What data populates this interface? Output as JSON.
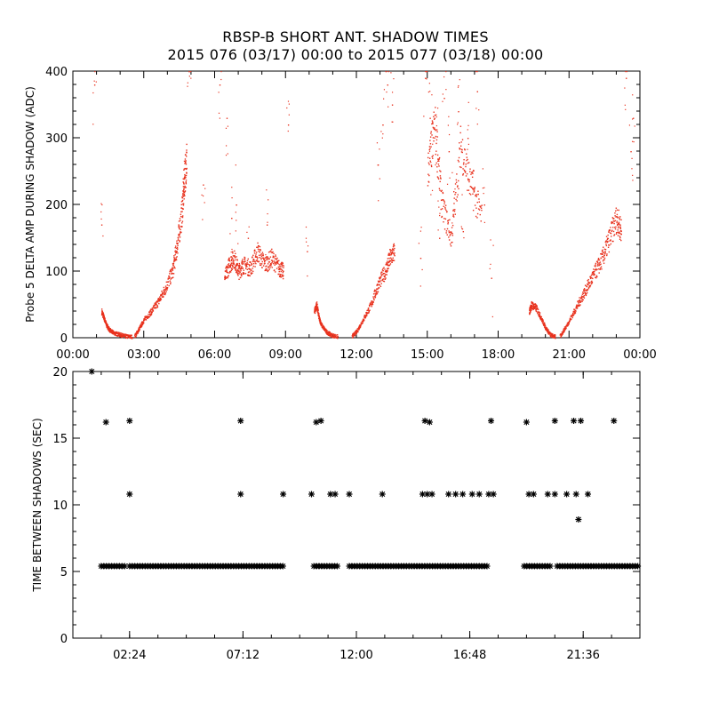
{
  "title": "RBSP-B SHORT ANT. SHADOW TIMES",
  "subtitle": "2015 076 (03/17) 00:00 to 2015 077 (03/18) 00:00",
  "colors": {
    "top_series": "#e8321e",
    "bottom_series": "#000000",
    "axes": "#000000"
  },
  "chart_data": [
    {
      "type": "scatter",
      "ylabel": "Probe 5 DELTA AMP DURING SHADOW (ADC)",
      "xlabel": "",
      "xlim": [
        0,
        24
      ],
      "ylim": [
        0,
        400
      ],
      "x_tick_labels": [
        "00:00",
        "03:00",
        "06:00",
        "09:00",
        "12:00",
        "15:00",
        "18:00",
        "21:00",
        "00:00"
      ],
      "x_tick_values": [
        0,
        3,
        6,
        9,
        12,
        15,
        18,
        21,
        24
      ],
      "y_tick_labels": [
        "0",
        "100",
        "200",
        "300",
        "400"
      ],
      "y_tick_values": [
        0,
        100,
        200,
        300,
        400
      ],
      "grid": false,
      "series": [
        {
          "color": "#e8321e",
          "marker": "dot",
          "segments": [
            {
              "x": [
                1.2,
                1.3,
                1.4,
                1.5,
                1.6,
                1.8,
                2.0,
                2.2,
                2.5
              ],
              "y": [
                40,
                30,
                20,
                14,
                10,
                7,
                5,
                3,
                2
              ]
            },
            {
              "x": [
                2.6,
                2.8,
                3.0,
                3.3,
                3.6,
                3.9,
                4.2,
                4.4,
                4.6,
                4.7,
                4.8
              ],
              "y": [
                3,
                15,
                28,
                40,
                55,
                75,
                100,
                140,
                190,
                240,
                270
              ]
            },
            {
              "x": [
                6.4,
                6.6,
                6.8,
                7.0,
                7.2,
                7.5,
                7.8,
                8.1,
                8.4,
                8.7,
                8.9
              ],
              "y": [
                90,
                110,
                120,
                100,
                110,
                105,
                130,
                110,
                120,
                105,
                100
              ]
            },
            {
              "x": [
                10.2,
                10.3,
                10.4,
                10.5,
                10.7,
                10.9,
                11.2
              ],
              "y": [
                40,
                50,
                30,
                20,
                10,
                5,
                2
              ]
            },
            {
              "x": [
                11.8,
                12.0,
                12.3,
                12.6,
                12.9,
                13.2,
                13.4,
                13.6
              ],
              "y": [
                3,
                10,
                30,
                50,
                80,
                100,
                120,
                130
              ]
            },
            {
              "x": [
                15.0,
                15.3,
                15.6,
                16.0,
                16.4,
                16.8,
                17.3
              ],
              "y": [
                250,
                320,
                200,
                150,
                290,
                230,
                180
              ]
            },
            {
              "x": [
                19.3,
                19.4,
                19.6,
                19.8,
                20.0,
                20.2,
                20.4
              ],
              "y": [
                40,
                50,
                45,
                30,
                15,
                5,
                2
              ]
            },
            {
              "x": [
                20.6,
                20.9,
                21.2,
                21.5,
                21.8,
                22.1,
                22.4,
                22.7,
                23.0,
                23.2
              ],
              "y": [
                3,
                20,
                40,
                60,
                80,
                100,
                120,
                150,
                180,
                160
              ]
            }
          ],
          "scattered_points": {
            "x": [
              0.9,
              1.2,
              4.9,
              5.5,
              6.2,
              6.5,
              6.7,
              6.9,
              7.4,
              8.2,
              9.1,
              9.9,
              12.9,
              13.1,
              13.3,
              13.5,
              14.7,
              14.9,
              15.1,
              15.2,
              15.4,
              15.5,
              15.7,
              15.9,
              16.1,
              16.3,
              16.5,
              16.7,
              16.9,
              17.1,
              17.4,
              17.7,
              23.4,
              23.6,
              23.7
            ],
            "y": [
              380,
              170,
              400,
              230,
              380,
              330,
              180,
              200,
              150,
              170,
              320,
              130,
              260,
              320,
              380,
              350,
              120,
              390,
              330,
              270,
              310,
              150,
              360,
              280,
              220,
              340,
              160,
              300,
              250,
              370,
              200,
              90,
              390,
              280,
              330
            ]
          }
        }
      ]
    },
    {
      "type": "scatter",
      "ylabel": "TIME BETWEEN SHADOWS (SEC)",
      "xlabel": "",
      "xlim": [
        0,
        24
      ],
      "ylim": [
        0,
        20
      ],
      "x_tick_labels": [
        "02:24",
        "07:12",
        "12:00",
        "16:48",
        "21:36"
      ],
      "x_tick_values": [
        2.4,
        7.2,
        12.0,
        16.8,
        21.6
      ],
      "y_tick_labels": [
        "0",
        "5",
        "10",
        "15",
        "20"
      ],
      "y_tick_values": [
        0,
        5,
        10,
        15,
        20
      ],
      "grid": false,
      "series": [
        {
          "color": "#000000",
          "marker": "asterisk",
          "baseline_value": 5.4,
          "baseline_ranges": [
            [
              1.2,
              2.3
            ],
            [
              2.4,
              8.9
            ],
            [
              10.2,
              11.2
            ],
            [
              11.7,
              17.6
            ],
            [
              19.1,
              20.2
            ],
            [
              20.5,
              24.0
            ]
          ],
          "x": [
            0.8,
            1.4,
            2.4,
            2.4,
            7.1,
            7.1,
            8.9,
            10.1,
            10.3,
            10.5,
            10.9,
            11.1,
            11.7,
            13.1,
            14.8,
            14.9,
            15.1,
            15.0,
            15.2,
            15.9,
            16.2,
            16.5,
            16.9,
            17.2,
            17.6,
            17.7,
            17.8,
            19.2,
            19.3,
            19.5,
            20.1,
            20.4,
            20.4,
            20.9,
            21.2,
            21.3,
            21.4,
            21.5,
            21.8,
            22.9
          ],
          "y": [
            20,
            16.2,
            16.3,
            10.8,
            16.3,
            10.8,
            10.8,
            10.8,
            16.2,
            16.3,
            10.8,
            10.8,
            10.8,
            10.8,
            10.8,
            16.3,
            16.2,
            10.8,
            10.8,
            10.8,
            10.8,
            10.8,
            10.8,
            10.8,
            10.8,
            16.3,
            10.8,
            16.2,
            10.8,
            10.8,
            10.8,
            16.3,
            10.8,
            10.8,
            16.3,
            10.8,
            8.9,
            16.3,
            10.8,
            16.3
          ]
        }
      ]
    }
  ]
}
